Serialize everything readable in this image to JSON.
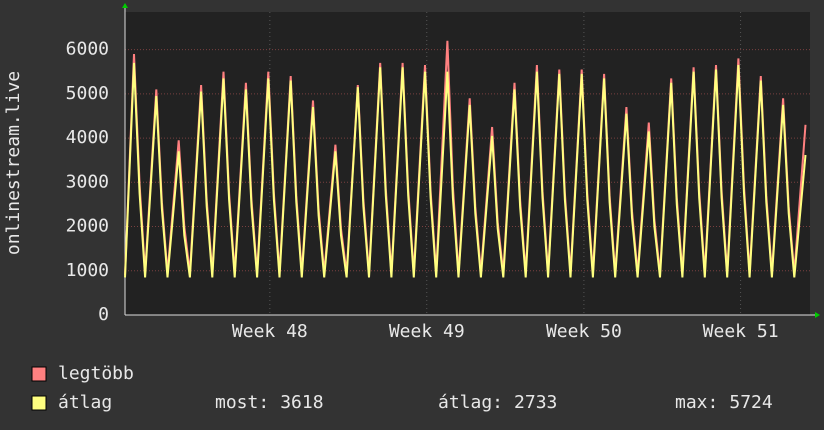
{
  "chart_data": {
    "type": "line",
    "y_label": "onlinestream.live",
    "x": [
      0,
      0.4,
      0.65,
      0.9,
      1.4,
      1.65,
      1.9,
      2.4,
      2.65,
      2.9,
      3.4,
      3.65,
      3.9,
      4.4,
      4.65,
      4.9,
      5.4,
      5.65,
      5.9,
      6.4,
      6.65,
      6.9,
      7.4,
      7.65,
      7.9,
      8.4,
      8.65,
      8.9,
      9.4,
      9.65,
      9.9,
      10.4,
      10.65,
      10.9,
      11.4,
      11.65,
      11.9,
      12.4,
      12.65,
      12.9,
      13.4,
      13.65,
      13.9,
      14.4,
      14.65,
      14.9,
      15.4,
      15.65,
      15.9,
      16.4,
      16.65,
      16.9,
      17.4,
      17.65,
      17.9,
      18.4,
      18.65,
      18.9,
      19.4,
      19.65,
      19.9,
      20.4,
      20.65,
      20.9,
      21.4,
      21.65,
      21.9,
      22.4,
      22.65,
      22.9,
      23.4,
      23.65,
      23.9,
      24.4,
      24.65,
      24.9,
      25.4,
      25.65,
      25.9,
      26.4,
      26.65,
      26.9,
      27.4,
      27.65,
      27.9,
      28.4,
      28.65,
      28.9,
      29.4,
      29.65,
      29.9,
      30.4
    ],
    "series": [
      {
        "name": "legtöbb",
        "color": "#ff8080",
        "values": [
          900,
          5900,
          2950,
          950,
          5100,
          2550,
          950,
          3950,
          2000,
          950,
          5200,
          2600,
          950,
          5500,
          2750,
          950,
          5250,
          2600,
          950,
          5500,
          2750,
          950,
          5400,
          2700,
          950,
          4850,
          2400,
          950,
          3850,
          1950,
          950,
          5200,
          2600,
          950,
          5700,
          2850,
          950,
          5700,
          2850,
          950,
          5650,
          2800,
          950,
          6200,
          2900,
          950,
          4900,
          2450,
          950,
          4250,
          2100,
          950,
          5250,
          2600,
          950,
          5650,
          2800,
          950,
          5550,
          2750,
          950,
          5550,
          2750,
          950,
          5450,
          2700,
          950,
          4700,
          2350,
          950,
          4350,
          2150,
          950,
          5350,
          2650,
          950,
          5600,
          2800,
          950,
          5650,
          2800,
          950,
          5800,
          2900,
          950,
          5400,
          2700,
          950,
          4900,
          2450,
          950,
          4300
        ]
      },
      {
        "name": "átlag",
        "color": "#ffff80",
        "values": [
          850,
          5700,
          2750,
          850,
          4950,
          2400,
          850,
          3700,
          1800,
          850,
          5050,
          2450,
          850,
          5350,
          2600,
          850,
          5100,
          2450,
          850,
          5350,
          2600,
          850,
          5300,
          2550,
          850,
          4700,
          2250,
          850,
          3700,
          1800,
          850,
          5150,
          2450,
          850,
          5600,
          2700,
          850,
          5600,
          2700,
          850,
          5500,
          2650,
          850,
          5500,
          2650,
          850,
          4750,
          2300,
          850,
          4050,
          1950,
          850,
          5100,
          2450,
          850,
          5500,
          2650,
          850,
          5450,
          2600,
          850,
          5450,
          2600,
          850,
          5350,
          2550,
          850,
          4550,
          2200,
          850,
          4150,
          2000,
          850,
          5250,
          2500,
          850,
          5500,
          2650,
          850,
          5550,
          2650,
          850,
          5650,
          2750,
          850,
          5300,
          2550,
          850,
          4750,
          2300,
          850,
          3618
        ]
      }
    ],
    "xlim": [
      0,
      30.6
    ],
    "xticks": [
      {
        "value": 6.47,
        "label": "Week 48"
      },
      {
        "value": 13.48,
        "label": "Week 49"
      },
      {
        "value": 20.5,
        "label": "Week 50"
      },
      {
        "value": 27.5,
        "label": "Week 51"
      }
    ],
    "ylim": [
      0,
      6850
    ],
    "yticks": [
      0,
      1000,
      2000,
      3000,
      4000,
      5000,
      6000
    ],
    "grid": true,
    "stats": [
      {
        "label": "most:",
        "value": 3618
      },
      {
        "label": "átlag:",
        "value": 2733
      },
      {
        "label": "max:",
        "value": 5724
      }
    ]
  }
}
